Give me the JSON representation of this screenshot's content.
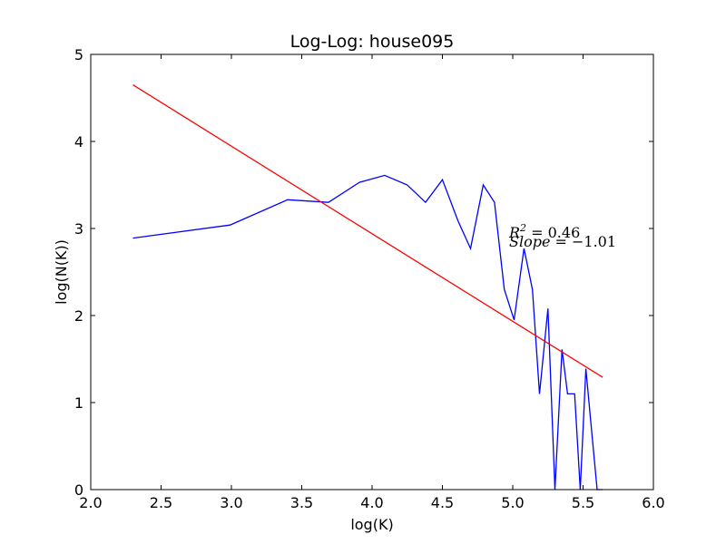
{
  "chart_data": {
    "type": "line",
    "title": "Log-Log: house095",
    "xlabel": "log(K)",
    "ylabel": "log(N(K))",
    "xlim": [
      2.0,
      6.0
    ],
    "ylim": [
      0,
      5
    ],
    "xticks": [
      "2.0",
      "2.5",
      "3.0",
      "3.5",
      "4.0",
      "4.5",
      "5.0",
      "5.5",
      "6.0"
    ],
    "yticks": [
      "0",
      "1",
      "2",
      "3",
      "4",
      "5"
    ],
    "grid": false,
    "series": [
      {
        "color": "#0000ff",
        "x": [
          2.3,
          2.99,
          3.4,
          3.69,
          3.91,
          4.09,
          4.25,
          4.38,
          4.5,
          4.61,
          4.7,
          4.79,
          4.87,
          4.94,
          5.01,
          5.08,
          5.14,
          5.19,
          5.25,
          5.3,
          5.35,
          5.39,
          5.44,
          5.48,
          5.52,
          5.56,
          5.6,
          5.64
        ],
        "y": [
          2.89,
          3.04,
          3.33,
          3.3,
          3.53,
          3.61,
          3.5,
          3.3,
          3.56,
          3.09,
          2.77,
          3.5,
          3.3,
          2.3,
          1.95,
          2.77,
          2.3,
          1.1,
          2.08,
          0.0,
          1.61,
          1.1,
          1.1,
          0.0,
          1.39,
          0.69,
          0.0,
          0.0
        ]
      },
      {
        "color": "#ff0000",
        "x": [
          2.3,
          5.64
        ],
        "y": [
          4.65,
          1.29
        ]
      }
    ],
    "annotations": [
      "R^2=0.46",
      "Slope=−1.01"
    ]
  }
}
